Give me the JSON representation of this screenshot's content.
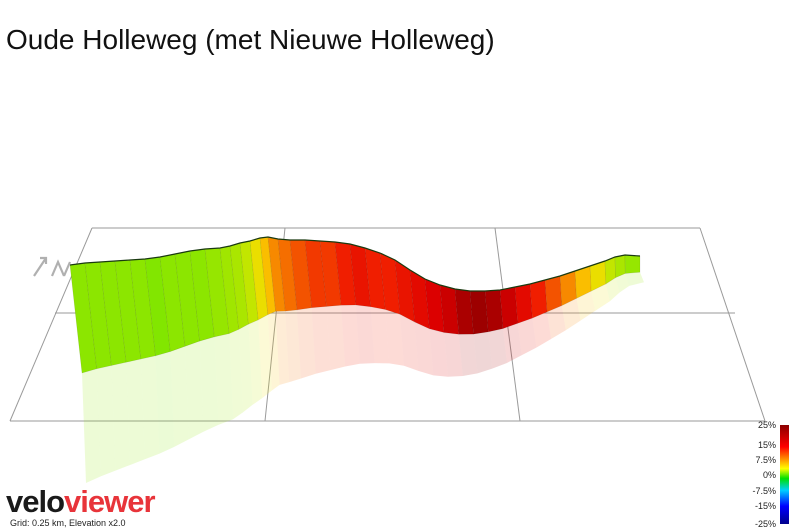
{
  "title": "Oude Holleweg (met Nieuwe Holleweg)",
  "branding": {
    "velo": "velo",
    "viewer": "viewer"
  },
  "grid_note": "Grid: 0.25 km, Elevation x2.0",
  "legend": {
    "labels": [
      "25%",
      "15%",
      "7.5%",
      "0%",
      "-7.5%",
      "-15%",
      "-25%"
    ]
  },
  "chart_data": {
    "type": "area",
    "title": "Oude Holleweg (met Nieuwe Holleweg)",
    "xlabel": "",
    "ylabel": "",
    "grid": "0.25 km",
    "elevation_exaggeration": 2.0,
    "series": [
      {
        "values_gradient_pct": [
          2,
          2,
          2,
          2,
          2,
          1,
          2,
          2,
          2,
          3,
          4,
          5,
          6,
          8,
          10,
          12,
          13,
          14,
          15,
          15,
          16,
          17,
          16,
          16,
          17,
          18,
          19,
          20,
          22,
          23,
          22,
          20,
          18,
          16,
          14,
          12,
          10,
          8,
          6,
          5,
          3,
          2
        ]
      }
    ]
  }
}
